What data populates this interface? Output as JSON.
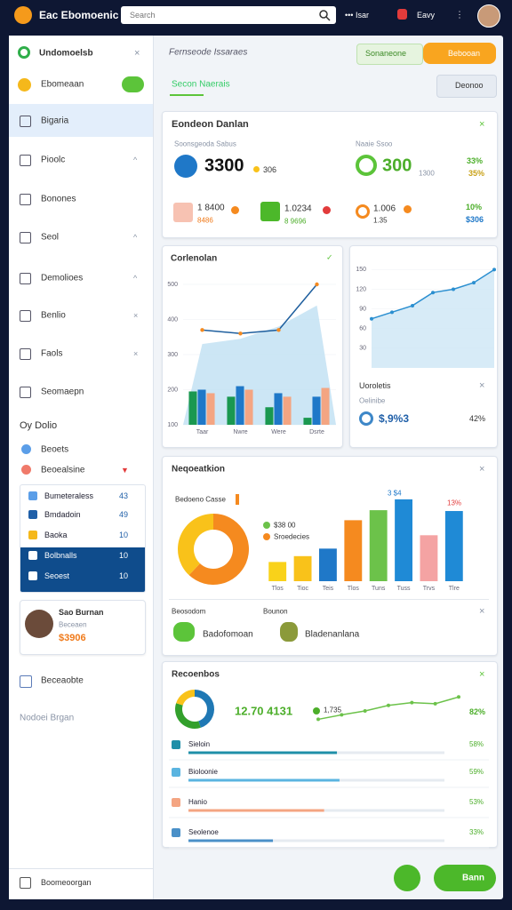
{
  "topbar": {
    "brand": "Eac Ebomoenic",
    "search": "Search",
    "menu": "••• Isar",
    "user": "Eavy"
  },
  "sidebar": {
    "title": "Undomoelsb",
    "toggle": "Ebomeaan",
    "nav": [
      "Bigaria",
      "Pioolc",
      "Bonones",
      "Seol",
      "Demolioes",
      "Benlio",
      "Faols",
      "Seomaepn"
    ],
    "section": "Oy Dolio",
    "items": [
      "Beoets",
      "Beoealsine"
    ],
    "list": [
      {
        "label": "Bumeteraless",
        "value": 43
      },
      {
        "label": "Bmdadoin",
        "value": 49
      },
      {
        "label": "Baoka",
        "value": 10
      },
      {
        "label": "Bolbnalls",
        "value": 10
      },
      {
        "label": "Seoest",
        "value": 10
      }
    ],
    "profile": {
      "name": "Sao Burnan",
      "role": "Beceaen",
      "amount": "$3906"
    },
    "link": "Beceaobte",
    "note": "Nodoei Brgan",
    "footer": "Boomeoorgan"
  },
  "header": {
    "title": "Fernseode Issaraes",
    "buttons": [
      "Sonaneone",
      "Bebooan"
    ],
    "tab": "Secon Naerais",
    "action": "Deonoo"
  },
  "overview": {
    "title": "Eondeon Danlan",
    "left": {
      "label": "Soonsgeoda Sabus",
      "value": "3300",
      "sub": "306"
    },
    "right": {
      "label": "Naaie Ssoo",
      "value": "300",
      "sub": "1300"
    },
    "change": [
      "33%",
      "35%"
    ],
    "stats": [
      {
        "value": "1 8400",
        "sub": "8486"
      },
      {
        "value": "1.0234",
        "sub": "8 9696"
      },
      {
        "value": "1.006",
        "sub": "1.35"
      },
      {
        "value": "10%",
        "sub": "$306"
      }
    ]
  },
  "side_stat": {
    "title": "Uoroletis",
    "label": "Oelinibe",
    "value": "$,9%3",
    "change": "42%"
  },
  "mix": {
    "legend": [
      "Bedoeno Casse",
      "$38 00",
      "Sroedecies"
    ],
    "footer": [
      "Beosodom",
      "Bounon"
    ],
    "items": [
      "Badofomoan",
      "Bladenanlana"
    ]
  },
  "trend": {
    "value": "12.70 4131",
    "sub": "1,735",
    "change": "82%"
  },
  "actions": {
    "primary": "Bann"
  },
  "chart_data": [
    {
      "type": "bar",
      "title": "Corlenolan",
      "categories": [
        "Taar",
        "Nwre",
        "Were",
        "Dsrte"
      ],
      "ylim": [
        100,
        500
      ],
      "yticks": [
        500,
        400,
        300,
        200,
        100
      ],
      "series": [
        {
          "type": "area",
          "color": "#bfe0f2",
          "values": [
            330,
            345,
            380,
            440
          ]
        },
        {
          "type": "bar",
          "color": "#1a9850",
          "values": [
            195,
            180,
            150,
            120
          ]
        },
        {
          "type": "bar",
          "color": "#1f78c8",
          "values": [
            200,
            210,
            190,
            180
          ]
        },
        {
          "type": "bar",
          "color": "#f4a582",
          "values": [
            190,
            200,
            180,
            205
          ]
        },
        {
          "type": "line",
          "color": "#1f5f9e",
          "values": [
            370,
            360,
            370,
            500
          ]
        }
      ]
    },
    {
      "type": "area",
      "x": [
        0,
        1,
        2,
        3,
        4,
        5,
        6
      ],
      "xlim": [
        0,
        6
      ],
      "ylim": [
        0,
        160
      ],
      "yticks": [
        150,
        120,
        90,
        60,
        30
      ],
      "color": "#2b8fd0",
      "values": [
        75,
        85,
        95,
        115,
        120,
        130,
        150
      ]
    },
    {
      "type": "pie",
      "title": "Neqoeatkion",
      "values": [
        62,
        38
      ],
      "colors": [
        "#f58a1f",
        "#f9c21a"
      ]
    },
    {
      "type": "bar",
      "categories": [
        "Tlos",
        "Tioc",
        "Teis",
        "Tlos",
        "Tuns",
        "Tuss",
        "Trvs",
        "Tlre"
      ],
      "values": [
        23,
        30,
        39,
        73,
        85,
        98,
        55,
        84
      ],
      "colors": [
        "#f9d21a",
        "#f9c21a",
        "#1f78c8",
        "#f58a1f",
        "#6cc24a",
        "#1f8ad6",
        "#f4a3a3",
        "#1f8ad6"
      ],
      "ylim": [
        0,
        100
      ],
      "annotations": [
        "3 $4",
        "13%"
      ]
    },
    {
      "type": "pie",
      "title": "Recoenbos",
      "values": [
        45,
        35,
        20
      ],
      "colors": [
        "#1f78b4",
        "#33a02c",
        "#f9c21a"
      ]
    },
    {
      "type": "line",
      "x": [
        0,
        1,
        2,
        3,
        4,
        5,
        6
      ],
      "xlim": [
        0,
        6
      ],
      "ylim": [
        0,
        70
      ],
      "color": "#6cc24a",
      "values": [
        20,
        28,
        35,
        45,
        50,
        48,
        60
      ]
    },
    {
      "type": "progress",
      "categories": [
        "Sieloin",
        "Bioloonie",
        "Hanio",
        "Seolenoe"
      ],
      "values": [
        58,
        59,
        53,
        33
      ],
      "value_labels": [
        "58%",
        "59%",
        "53%",
        "33%"
      ],
      "colors": [
        "#1f8fa8",
        "#5ab4e0",
        "#f4a582",
        "#4a90c8"
      ],
      "xlim": [
        0,
        100
      ]
    }
  ]
}
